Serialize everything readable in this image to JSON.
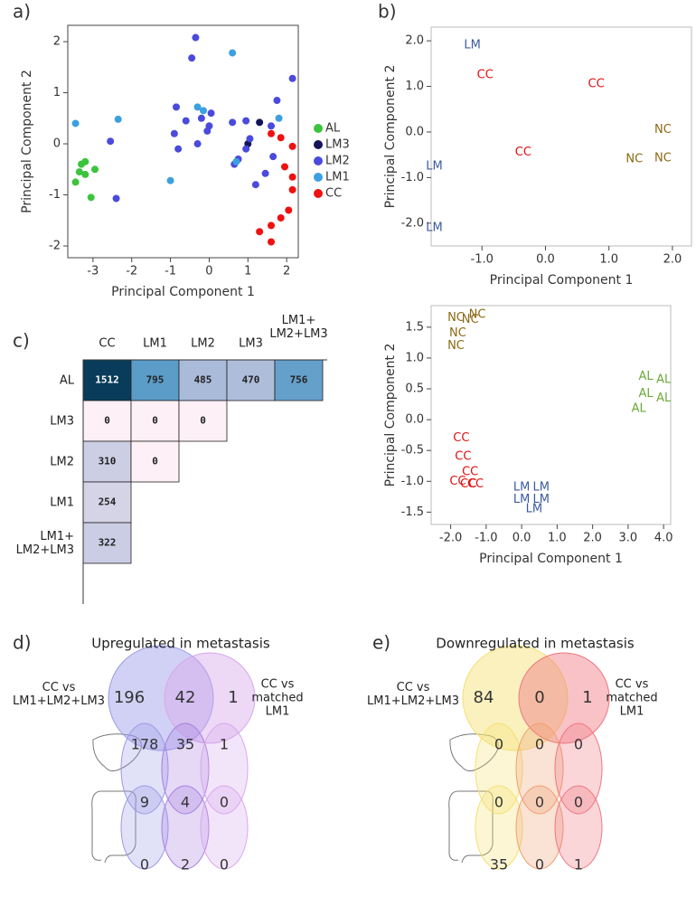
{
  "panel_labels": [
    "a)",
    "b)",
    "c)",
    "d)",
    "e)"
  ],
  "chart_data": [
    {
      "type": "scatter",
      "xlabel": "Principal Component 1",
      "ylabel": "Principal Component 2",
      "xlim": [
        -3.65,
        2.3
      ],
      "ylim": [
        -2.23,
        2.32
      ],
      "xticks": [
        -3,
        -2,
        -1,
        0,
        1,
        2
      ],
      "yticks": [
        -2,
        -1,
        0,
        1,
        2
      ],
      "legend": "right",
      "series": [
        {
          "name": "AL",
          "color": "#3cc43c",
          "x": [
            -3.3,
            -3.2,
            -3.35,
            -2.95,
            -3.2,
            -3.45,
            -3.05
          ],
          "values": [
            -0.4,
            -0.35,
            -0.55,
            -0.5,
            -0.6,
            -0.75,
            -1.05
          ]
        },
        {
          "name": "LM3",
          "color": "#14145a",
          "x": [
            1.0,
            1.3
          ],
          "values": [
            0.0,
            0.42
          ]
        },
        {
          "name": "LM2",
          "color": "#4a4adc",
          "x": [
            -0.35,
            -0.45,
            -2.55,
            -2.4,
            -0.85,
            -0.6,
            -0.9,
            -0.8,
            -0.2,
            0.0,
            -0.05,
            0.05,
            0.6,
            0.95,
            1.05,
            0.95,
            0.75,
            1.2,
            1.45,
            1.65,
            1.75,
            2.15,
            1.6,
            0.65,
            -0.3
          ],
          "values": [
            2.08,
            1.68,
            0.05,
            -1.07,
            0.72,
            0.45,
            0.2,
            -0.1,
            0.5,
            0.35,
            0.25,
            0.6,
            0.42,
            0.45,
            0.1,
            -0.1,
            -0.3,
            -0.8,
            -0.58,
            -0.25,
            0.85,
            1.28,
            0.35,
            -0.4,
            0.0
          ]
        },
        {
          "name": "LM1",
          "color": "#3ca0e0",
          "x": [
            -3.45,
            -2.35,
            -1.0,
            -0.3,
            -0.15,
            0.6,
            1.8,
            0.7
          ],
          "values": [
            0.4,
            0.48,
            -0.72,
            0.72,
            0.65,
            1.78,
            0.5,
            -0.35
          ]
        },
        {
          "name": "CC",
          "color": "#ee1111",
          "x": [
            1.3,
            1.6,
            1.6,
            1.85,
            2.05,
            2.15,
            2.15,
            1.95,
            1.6,
            1.85,
            2.15
          ],
          "values": [
            -1.72,
            -1.92,
            -1.6,
            -1.45,
            -1.3,
            -0.65,
            -0.9,
            -0.45,
            0.2,
            0.12,
            -0.05
          ]
        }
      ]
    },
    {
      "type": "text_scatter",
      "xlabel": "Principal Component 1",
      "ylabel": "Principal Component 2",
      "xlim": [
        -1.8,
        2.3
      ],
      "ylim": [
        -2.5,
        2.3
      ],
      "xticks": [
        {
          "value": -1,
          "label": "-1.0"
        },
        {
          "value": 0,
          "label": "0.0"
        },
        {
          "value": 1,
          "label": "1.0"
        },
        {
          "value": 2,
          "label": "2.0"
        }
      ],
      "yticks": [
        {
          "value": -2,
          "label": "-2.0"
        },
        {
          "value": -1,
          "label": "-1.0"
        },
        {
          "value": 0,
          "label": "0.0"
        },
        {
          "value": 1,
          "label": "1.0"
        },
        {
          "value": 2,
          "label": "2.0"
        }
      ],
      "series": [
        {
          "name": "LM",
          "color": "#3c5aa0",
          "x": [
            -1.15,
            -1.75,
            -1.75
          ],
          "values": [
            1.9,
            -0.75,
            -2.1
          ]
        },
        {
          "name": "CC",
          "color": "#e01010",
          "x": [
            -0.95,
            0.8,
            -0.35
          ],
          "values": [
            1.25,
            1.05,
            -0.45
          ]
        },
        {
          "name": "NC",
          "color": "#8b6914",
          "x": [
            1.85,
            1.4,
            1.85
          ],
          "values": [
            0.05,
            -0.6,
            -0.58
          ]
        }
      ]
    },
    {
      "type": "text_scatter",
      "xlabel": "Principal Component 1",
      "ylabel": "Principal Component 2",
      "xlim": [
        -2.55,
        4.2
      ],
      "ylim": [
        -1.7,
        1.85
      ],
      "xticks": [
        {
          "value": -2,
          "label": "-2.0"
        },
        {
          "value": -1,
          "label": "-1.0"
        },
        {
          "value": 0,
          "label": "0.0"
        },
        {
          "value": 1,
          "label": "1.0"
        },
        {
          "value": 2,
          "label": "2.0"
        },
        {
          "value": 3,
          "label": "3.0"
        },
        {
          "value": 4,
          "label": "4.0"
        }
      ],
      "yticks": [
        {
          "value": -1.5,
          "label": "-1.5"
        },
        {
          "value": -1,
          "label": "-1.0"
        },
        -0.5,
        {
          "value": 0,
          "label": "0.0"
        },
        0.5,
        {
          "value": 1,
          "label": "1.0"
        },
        1.5
      ],
      "series": [
        {
          "name": "NC",
          "color": "#8b6914",
          "x": [
            -1.85,
            -1.25,
            -1.45,
            -1.8,
            -1.85
          ],
          "values": [
            1.65,
            1.7,
            1.62,
            1.4,
            1.2
          ]
        },
        {
          "name": "AL",
          "color": "#6aaa3a",
          "x": [
            3.5,
            4.0,
            3.5,
            4.0,
            3.3
          ],
          "values": [
            0.7,
            0.65,
            0.42,
            0.35,
            0.18
          ]
        },
        {
          "name": "CC",
          "color": "#e01010",
          "x": [
            -1.7,
            -1.65,
            -1.45,
            -1.8,
            -1.5,
            -1.3
          ],
          "values": [
            -0.3,
            -0.6,
            -0.85,
            -1.0,
            -1.05,
            -1.05
          ]
        },
        {
          "name": "LM",
          "color": "#3c5aa0",
          "x": [
            0.0,
            0.55,
            0.0,
            0.55,
            0.35
          ],
          "values": [
            -1.1,
            -1.1,
            -1.3,
            -1.3,
            -1.45
          ]
        }
      ]
    }
  ],
  "matrix": {
    "columns": [
      "CC",
      "LM1",
      "LM2",
      "LM3",
      "LM1+\nLM2+LM3"
    ],
    "rows": [
      "AL",
      "LM3",
      "LM2",
      "LM1",
      "LM1+\nLM2+LM3"
    ],
    "values": [
      [
        1512,
        795,
        485,
        470,
        756
      ],
      [
        0,
        0,
        0
      ],
      [
        310,
        0
      ],
      [
        254
      ],
      [
        322
      ]
    ]
  },
  "venn_up": {
    "title": "Upregulated in metastasis",
    "left_label": "CC  vs\nLM1+LM2+LM3",
    "right_label": "CC vs\nmatched\nLM1",
    "values": [
      196,
      42,
      1
    ],
    "grid": [
      [
        178,
        35,
        1
      ],
      [
        9,
        4,
        0
      ],
      [
        0,
        2,
        0
      ]
    ]
  },
  "venn_down": {
    "title": "Downregulated in metastasis",
    "left_label": "CC  vs\nLM1+LM2+LM3",
    "right_label": "CC vs\nmatched\nLM1",
    "values": [
      84,
      0,
      1
    ],
    "grid": [
      [
        0,
        0,
        0
      ],
      [
        0,
        0,
        0
      ],
      [
        35,
        0,
        1
      ]
    ]
  }
}
